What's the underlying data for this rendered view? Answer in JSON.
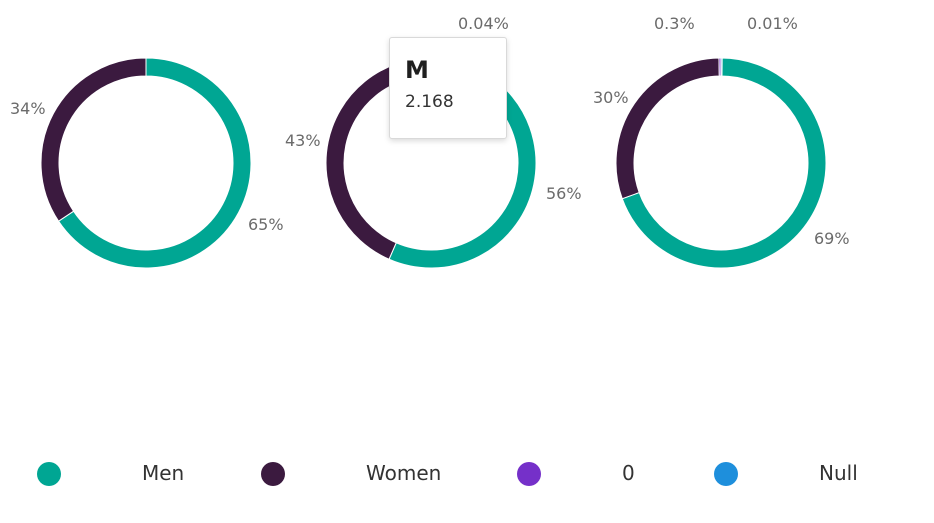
{
  "chart_data": [
    {
      "type": "pie",
      "style": "donut",
      "categories": [
        "Men",
        "Women",
        "0",
        "Null"
      ],
      "values": [
        65,
        34,
        0,
        0
      ],
      "labels": [
        "65%",
        "34%",
        "",
        ""
      ]
    },
    {
      "type": "pie",
      "style": "donut",
      "categories": [
        "Men",
        "Women",
        "0",
        "Null"
      ],
      "values": [
        56,
        43,
        0.04,
        0
      ],
      "labels": [
        "56%",
        "43%",
        "0.04%",
        ""
      ]
    },
    {
      "type": "pie",
      "style": "donut",
      "categories": [
        "Men",
        "Women",
        "0",
        "Null"
      ],
      "values": [
        69,
        30,
        0.3,
        0.01
      ],
      "labels": [
        "69%",
        "30%",
        "0.3%",
        "0.01%"
      ]
    }
  ],
  "colors": {
    "Men": "#00a693",
    "Women": "#3b1a3f",
    "0": "#7530c9",
    "Null": "#1e8fdc"
  },
  "tooltip": {
    "title": "M",
    "value": "2.168"
  },
  "legend": [
    {
      "label": "Men",
      "color": "#00a693"
    },
    {
      "label": "Women",
      "color": "#3b1a3f"
    },
    {
      "label": "0",
      "color": "#7530c9"
    },
    {
      "label": "Null",
      "color": "#1e8fdc"
    }
  ]
}
